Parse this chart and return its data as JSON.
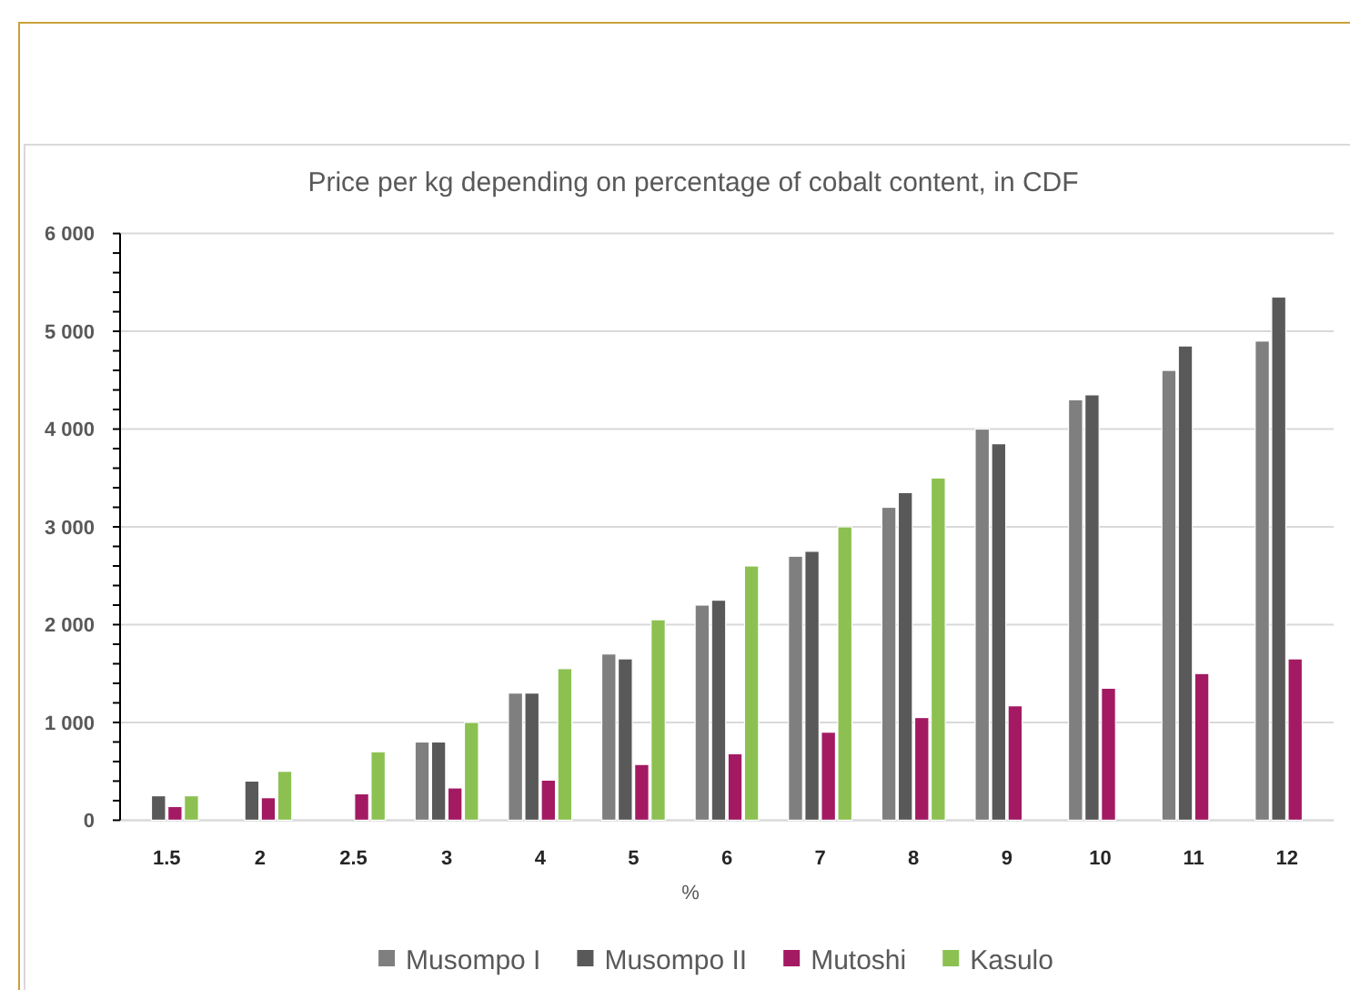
{
  "chart_data": {
    "type": "bar",
    "title": "Price per kg depending on percentage of cobalt content, in CDF",
    "xlabel": "%",
    "categories": [
      "1.5",
      "2",
      "2.5",
      "3",
      "4",
      "5",
      "6",
      "7",
      "8",
      "9",
      "10",
      "11",
      "12"
    ],
    "series": [
      {
        "name": "Musompo I",
        "color": "#7f7f7f",
        "values": [
          null,
          null,
          null,
          800,
          1300,
          1700,
          2200,
          2700,
          3200,
          4000,
          4300,
          4600,
          4900
        ]
      },
      {
        "name": "Musompo II",
        "color": "#595959",
        "values": [
          250,
          400,
          null,
          800,
          1300,
          1650,
          2250,
          2750,
          3350,
          3850,
          4350,
          4850,
          5350
        ]
      },
      {
        "name": "Mutoshi",
        "color": "#a31a63",
        "values": [
          140,
          230,
          270,
          330,
          410,
          570,
          680,
          900,
          1050,
          1170,
          1350,
          1500,
          1650
        ]
      },
      {
        "name": "Kasulo",
        "color": "#8cc152",
        "values": [
          250,
          500,
          700,
          1000,
          1550,
          2050,
          2600,
          3000,
          3500,
          null,
          null,
          null,
          null
        ]
      }
    ],
    "ylim": [
      0,
      6000
    ],
    "yticks": [
      0,
      {
        "value": 200,
        "label": null
      },
      {
        "value": 400,
        "label": null
      },
      {
        "value": 600,
        "label": null
      },
      {
        "value": 800,
        "label": null
      },
      {
        "value": 1000,
        "label": "1 000"
      },
      {
        "value": 1200,
        "label": null
      },
      {
        "value": 1400,
        "label": null
      },
      {
        "value": 1600,
        "label": null
      },
      {
        "value": 1800,
        "label": null
      },
      {
        "value": 2000,
        "label": "2 000"
      },
      {
        "value": 2200,
        "label": null
      },
      {
        "value": 2400,
        "label": null
      },
      {
        "value": 2600,
        "label": null
      },
      {
        "value": 2800,
        "label": null
      },
      {
        "value": 3000,
        "label": "3 000"
      },
      {
        "value": 3200,
        "label": null
      },
      {
        "value": 3400,
        "label": null
      },
      {
        "value": 3600,
        "label": null
      },
      {
        "value": 3800,
        "label": null
      },
      {
        "value": 4000,
        "label": "4 000"
      },
      {
        "value": 4200,
        "label": null
      },
      {
        "value": 4400,
        "label": null
      },
      {
        "value": 4600,
        "label": null
      },
      {
        "value": 4800,
        "label": null
      },
      {
        "value": 5000,
        "label": "5 000"
      },
      {
        "value": 5200,
        "label": null
      },
      {
        "value": 5400,
        "label": null
      },
      {
        "value": 5600,
        "label": null
      },
      {
        "value": 5800,
        "label": null
      },
      {
        "value": 6000,
        "label": "6 000"
      }
    ],
    "grid": "y",
    "legend": "bottom"
  }
}
